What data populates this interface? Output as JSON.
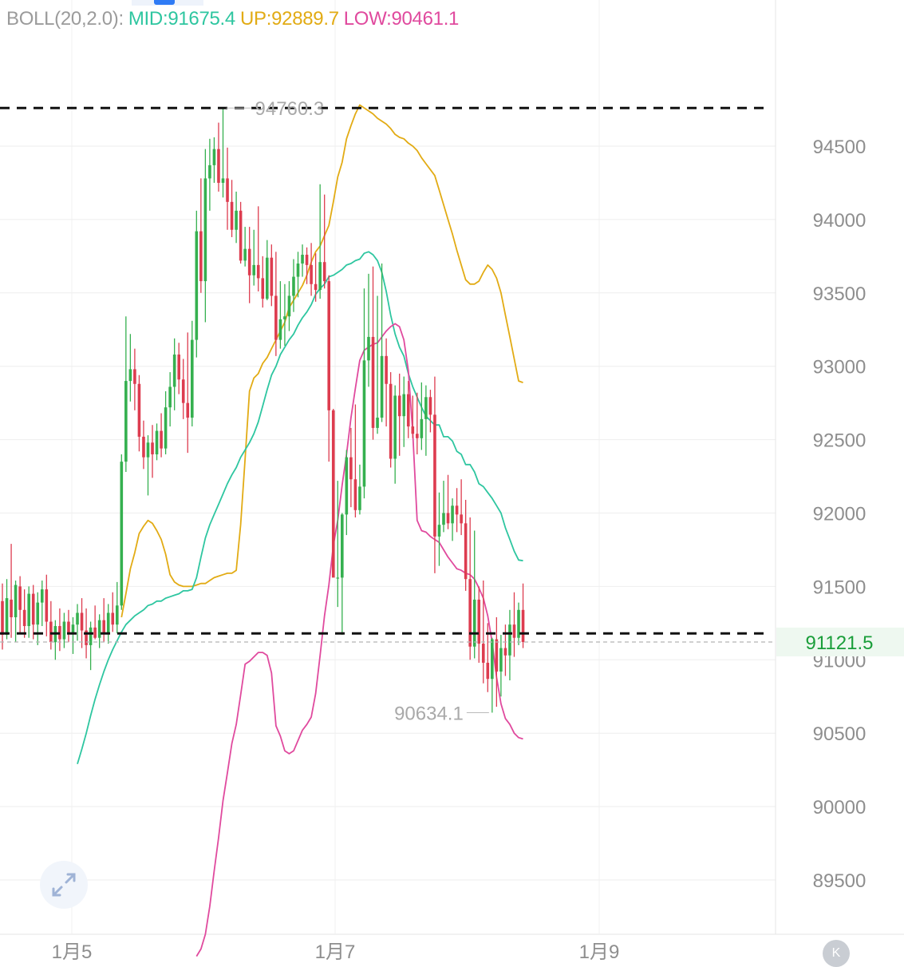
{
  "indicator": {
    "name": "BOLL(20,2.0):",
    "mid": "MID:91675.4",
    "up": "UP:92889.7",
    "low": "LOW:90461.1"
  },
  "colors": {
    "up_candle": "#35b04f",
    "down_candle": "#dd3c4f",
    "mid_line": "#2ec6a0",
    "upper_band": "#e2ab14",
    "lower_band": "#e04a9e",
    "price_label": "#1a9e3a",
    "axis_text": "#8e8e8e"
  },
  "chart_data": {
    "type": "candlestick",
    "y_ticks": [
      "94500",
      "94000",
      "93500",
      "93000",
      "92500",
      "92000",
      "91500",
      "91000",
      "90500",
      "90000",
      "89500"
    ],
    "x_ticks": [
      "1月5",
      "1月7",
      "1月9"
    ],
    "ylim": [
      89200,
      95500
    ],
    "high_marker": "94760.3",
    "low_marker": "90634.1",
    "current_price": "91121.5",
    "dashed_levels": [
      94760,
      91180
    ],
    "candles": [
      {
        "o": 91400,
        "h": 91520,
        "l": 91070,
        "c": 91170
      },
      {
        "o": 91170,
        "h": 91550,
        "l": 91140,
        "c": 91420
      },
      {
        "o": 91410,
        "h": 91790,
        "l": 91150,
        "c": 91290
      },
      {
        "o": 91290,
        "h": 91540,
        "l": 91120,
        "c": 91510
      },
      {
        "o": 91500,
        "h": 91570,
        "l": 91180,
        "c": 91340
      },
      {
        "o": 91340,
        "h": 91480,
        "l": 91150,
        "c": 91230
      },
      {
        "o": 91230,
        "h": 91500,
        "l": 91150,
        "c": 91450
      },
      {
        "o": 91450,
        "h": 91510,
        "l": 91140,
        "c": 91240
      },
      {
        "o": 91240,
        "h": 91460,
        "l": 91100,
        "c": 91390
      },
      {
        "o": 91390,
        "h": 91540,
        "l": 91230,
        "c": 91480
      },
      {
        "o": 91480,
        "h": 91580,
        "l": 91160,
        "c": 91260
      },
      {
        "o": 91260,
        "h": 91400,
        "l": 91070,
        "c": 91120
      },
      {
        "o": 91120,
        "h": 91270,
        "l": 91000,
        "c": 91230
      },
      {
        "o": 91230,
        "h": 91350,
        "l": 91060,
        "c": 91140
      },
      {
        "o": 91140,
        "h": 91320,
        "l": 91080,
        "c": 91260
      },
      {
        "o": 91260,
        "h": 91340,
        "l": 91120,
        "c": 91180
      },
      {
        "o": 91180,
        "h": 91290,
        "l": 91040,
        "c": 91240
      },
      {
        "o": 91240,
        "h": 91380,
        "l": 91130,
        "c": 91320
      },
      {
        "o": 91320,
        "h": 91420,
        "l": 91080,
        "c": 91200
      },
      {
        "o": 91200,
        "h": 91350,
        "l": 91010,
        "c": 91100
      },
      {
        "o": 91100,
        "h": 91260,
        "l": 90930,
        "c": 91220
      },
      {
        "o": 91220,
        "h": 91370,
        "l": 91140,
        "c": 91150
      },
      {
        "o": 91150,
        "h": 91310,
        "l": 91080,
        "c": 91270
      },
      {
        "o": 91270,
        "h": 91420,
        "l": 91120,
        "c": 91180
      },
      {
        "o": 91180,
        "h": 91380,
        "l": 91110,
        "c": 91320
      },
      {
        "o": 91320,
        "h": 91460,
        "l": 91190,
        "c": 91240
      },
      {
        "o": 91240,
        "h": 91530,
        "l": 91180,
        "c": 91370
      },
      {
        "o": 91370,
        "h": 92400,
        "l": 91340,
        "c": 92350
      },
      {
        "o": 92350,
        "h": 93340,
        "l": 92280,
        "c": 92900
      },
      {
        "o": 92900,
        "h": 93220,
        "l": 92760,
        "c": 92980
      },
      {
        "o": 92980,
        "h": 93120,
        "l": 92700,
        "c": 92880
      },
      {
        "o": 92880,
        "h": 92940,
        "l": 92420,
        "c": 92520
      },
      {
        "o": 92520,
        "h": 92630,
        "l": 92300,
        "c": 92380
      },
      {
        "o": 92380,
        "h": 92530,
        "l": 92120,
        "c": 92480
      },
      {
        "o": 92480,
        "h": 92600,
        "l": 92240,
        "c": 92400
      },
      {
        "o": 92400,
        "h": 92610,
        "l": 92360,
        "c": 92560
      },
      {
        "o": 92560,
        "h": 92680,
        "l": 92380,
        "c": 92440
      },
      {
        "o": 92440,
        "h": 92830,
        "l": 92400,
        "c": 92720
      },
      {
        "o": 92720,
        "h": 92960,
        "l": 92590,
        "c": 92860
      },
      {
        "o": 92860,
        "h": 93190,
        "l": 92700,
        "c": 93080
      },
      {
        "o": 93080,
        "h": 93160,
        "l": 92810,
        "c": 92910
      },
      {
        "o": 92910,
        "h": 93050,
        "l": 92640,
        "c": 92750
      },
      {
        "o": 92750,
        "h": 93230,
        "l": 92410,
        "c": 92650
      },
      {
        "o": 92650,
        "h": 93310,
        "l": 92590,
        "c": 93180
      },
      {
        "o": 93180,
        "h": 94060,
        "l": 93060,
        "c": 93920
      },
      {
        "o": 93920,
        "h": 94280,
        "l": 93500,
        "c": 93580
      },
      {
        "o": 93580,
        "h": 94480,
        "l": 93300,
        "c": 94280
      },
      {
        "o": 94280,
        "h": 94550,
        "l": 94060,
        "c": 94370
      },
      {
        "o": 94370,
        "h": 94560,
        "l": 94250,
        "c": 94480
      },
      {
        "o": 94480,
        "h": 94660,
        "l": 94190,
        "c": 94250
      },
      {
        "o": 94250,
        "h": 94760,
        "l": 94150,
        "c": 94280
      },
      {
        "o": 94280,
        "h": 94490,
        "l": 93930,
        "c": 94120
      },
      {
        "o": 94120,
        "h": 94270,
        "l": 93880,
        "c": 93930
      },
      {
        "o": 93930,
        "h": 94190,
        "l": 93840,
        "c": 94060
      },
      {
        "o": 94060,
        "h": 94120,
        "l": 93700,
        "c": 93720
      },
      {
        "o": 93720,
        "h": 93950,
        "l": 93680,
        "c": 93800
      },
      {
        "o": 93800,
        "h": 93950,
        "l": 93430,
        "c": 93620
      },
      {
        "o": 93620,
        "h": 93930,
        "l": 93550,
        "c": 93690
      },
      {
        "o": 93690,
        "h": 94090,
        "l": 93510,
        "c": 93600
      },
      {
        "o": 93600,
        "h": 93750,
        "l": 93400,
        "c": 93460
      },
      {
        "o": 93460,
        "h": 93860,
        "l": 93450,
        "c": 93740
      },
      {
        "o": 93740,
        "h": 93830,
        "l": 93410,
        "c": 93480
      },
      {
        "o": 93480,
        "h": 93780,
        "l": 93070,
        "c": 93180
      },
      {
        "o": 93180,
        "h": 93580,
        "l": 93120,
        "c": 93320
      },
      {
        "o": 93320,
        "h": 93560,
        "l": 93140,
        "c": 93340
      },
      {
        "o": 93340,
        "h": 93580,
        "l": 93240,
        "c": 93480
      },
      {
        "o": 93480,
        "h": 93730,
        "l": 93370,
        "c": 93610
      },
      {
        "o": 93610,
        "h": 93780,
        "l": 93470,
        "c": 93700
      },
      {
        "o": 93700,
        "h": 93830,
        "l": 93610,
        "c": 93760
      },
      {
        "o": 93760,
        "h": 93810,
        "l": 93560,
        "c": 93690
      },
      {
        "o": 93690,
        "h": 93840,
        "l": 93480,
        "c": 93560
      },
      {
        "o": 93560,
        "h": 93770,
        "l": 93440,
        "c": 93520
      },
      {
        "o": 93520,
        "h": 94240,
        "l": 93460,
        "c": 93710
      },
      {
        "o": 93710,
        "h": 94170,
        "l": 93530,
        "c": 93580
      },
      {
        "o": 93580,
        "h": 93620,
        "l": 92350,
        "c": 92700
      },
      {
        "o": 92700,
        "h": 92710,
        "l": 91590,
        "c": 91560
      },
      {
        "o": 91560,
        "h": 92220,
        "l": 91360,
        "c": 91560
      },
      {
        "o": 91560,
        "h": 92000,
        "l": 91170,
        "c": 91990
      },
      {
        "o": 91990,
        "h": 92430,
        "l": 91850,
        "c": 92380
      },
      {
        "o": 92380,
        "h": 92580,
        "l": 92040,
        "c": 92230
      },
      {
        "o": 92230,
        "h": 92740,
        "l": 91970,
        "c": 92020
      },
      {
        "o": 92020,
        "h": 92330,
        "l": 91990,
        "c": 92180
      },
      {
        "o": 92180,
        "h": 93530,
        "l": 92100,
        "c": 93040
      },
      {
        "o": 93040,
        "h": 93630,
        "l": 92860,
        "c": 93200
      },
      {
        "o": 93200,
        "h": 93680,
        "l": 92500,
        "c": 92580
      },
      {
        "o": 92580,
        "h": 93480,
        "l": 92540,
        "c": 92650
      },
      {
        "o": 92650,
        "h": 93700,
        "l": 92620,
        "c": 93070
      },
      {
        "o": 93070,
        "h": 93190,
        "l": 92590,
        "c": 92880
      },
      {
        "o": 92880,
        "h": 92960,
        "l": 92310,
        "c": 92370
      },
      {
        "o": 92370,
        "h": 92870,
        "l": 92200,
        "c": 92800
      },
      {
        "o": 92800,
        "h": 92950,
        "l": 92390,
        "c": 92660
      },
      {
        "o": 92660,
        "h": 92930,
        "l": 92450,
        "c": 92810
      },
      {
        "o": 92810,
        "h": 92900,
        "l": 92510,
        "c": 92590
      },
      {
        "o": 92590,
        "h": 92800,
        "l": 92510,
        "c": 92540
      },
      {
        "o": 92540,
        "h": 92820,
        "l": 92400,
        "c": 92510
      },
      {
        "o": 92510,
        "h": 92890,
        "l": 92430,
        "c": 92640
      },
      {
        "o": 92640,
        "h": 92870,
        "l": 92390,
        "c": 92790
      },
      {
        "o": 92790,
        "h": 92840,
        "l": 92550,
        "c": 92670
      },
      {
        "o": 92670,
        "h": 92930,
        "l": 91590,
        "c": 91840
      },
      {
        "o": 91840,
        "h": 92140,
        "l": 91640,
        "c": 91920
      },
      {
        "o": 91920,
        "h": 92220,
        "l": 91870,
        "c": 92000
      },
      {
        "o": 92000,
        "h": 92260,
        "l": 91890,
        "c": 91930
      },
      {
        "o": 91930,
        "h": 92100,
        "l": 91810,
        "c": 92050
      },
      {
        "o": 92050,
        "h": 92170,
        "l": 91870,
        "c": 91990
      },
      {
        "o": 91990,
        "h": 92230,
        "l": 91850,
        "c": 91930
      },
      {
        "o": 91930,
        "h": 92090,
        "l": 91470,
        "c": 91550
      },
      {
        "o": 91550,
        "h": 91970,
        "l": 91000,
        "c": 91090
      },
      {
        "o": 91090,
        "h": 91880,
        "l": 91010,
        "c": 91410
      },
      {
        "o": 91410,
        "h": 91500,
        "l": 90980,
        "c": 91110
      },
      {
        "o": 91110,
        "h": 91540,
        "l": 90840,
        "c": 90980
      },
      {
        "o": 90980,
        "h": 91250,
        "l": 90780,
        "c": 90870
      },
      {
        "o": 90870,
        "h": 91150,
        "l": 90640,
        "c": 91140
      },
      {
        "o": 91140,
        "h": 91290,
        "l": 90680,
        "c": 90920
      },
      {
        "o": 90920,
        "h": 91170,
        "l": 90750,
        "c": 91080
      },
      {
        "o": 91080,
        "h": 91240,
        "l": 90890,
        "c": 91030
      },
      {
        "o": 91030,
        "h": 91340,
        "l": 90860,
        "c": 91240
      },
      {
        "o": 91240,
        "h": 91460,
        "l": 91020,
        "c": 91150
      },
      {
        "o": 91150,
        "h": 91390,
        "l": 91100,
        "c": 91340
      },
      {
        "o": 91340,
        "h": 91520,
        "l": 91080,
        "c": 91121.5
      }
    ],
    "mid_band": [
      90290,
      90390,
      90500,
      90620,
      90730,
      90830,
      90920,
      91000,
      91070,
      91130,
      91190,
      91240,
      91270,
      91300,
      91320,
      91340,
      91370,
      91380,
      91400,
      91400,
      91420,
      91430,
      91440,
      91450,
      91470,
      91470,
      91480,
      91560,
      91700,
      91830,
      91920,
      91990,
      92060,
      92130,
      92200,
      92260,
      92310,
      92380,
      92430,
      92480,
      92540,
      92620,
      92730,
      92840,
      92940,
      93000,
      93080,
      93130,
      93180,
      93220,
      93280,
      93330,
      93370,
      93420,
      93490,
      93530,
      93560,
      93610,
      93620,
      93640,
      93660,
      93690,
      93700,
      93720,
      93730,
      93770,
      93780,
      93760,
      93720,
      93640,
      93510,
      93350,
      93220,
      93130,
      93070,
      92950,
      92860,
      92790,
      92720,
      92660,
      92630,
      92600,
      92600,
      92520,
      92520,
      92490,
      92420,
      92400,
      92330,
      92330,
      92280,
      92200,
      92180,
      92140,
      92100,
      92050,
      92000,
      91900,
      91820,
      91740,
      91680,
      91675
    ],
    "upper_band": [
      91290,
      91450,
      91620,
      91730,
      91860,
      91910,
      91950,
      91930,
      91880,
      91820,
      91720,
      91580,
      91530,
      91510,
      91500,
      91500,
      91500,
      91510,
      91520,
      91520,
      91540,
      91560,
      91570,
      91580,
      91590,
      91590,
      91610,
      91920,
      92370,
      92830,
      92920,
      92950,
      93020,
      93060,
      93120,
      93180,
      93240,
      93300,
      93400,
      93450,
      93500,
      93550,
      93620,
      93710,
      93780,
      93820,
      93890,
      93960,
      94120,
      94290,
      94390,
      94550,
      94640,
      94720,
      94780,
      94760,
      94740,
      94720,
      94690,
      94670,
      94650,
      94620,
      94580,
      94560,
      94550,
      94520,
      94500,
      94470,
      94420,
      94380,
      94340,
      94300,
      94200,
      94100,
      94000,
      93900,
      93790,
      93690,
      93590,
      93560,
      93560,
      93580,
      93640,
      93690,
      93660,
      93600,
      93500,
      93350,
      93200,
      93050,
      92900,
      92889
    ],
    "lower_band": [
      88980,
      89030,
      89130,
      89320,
      89560,
      89790,
      90040,
      90230,
      90430,
      90560,
      90760,
      90970,
      90990,
      91020,
      91050,
      91050,
      91030,
      90910,
      90550,
      90480,
      90380,
      90360,
      90380,
      90450,
      90520,
      90560,
      90610,
      90770,
      91030,
      91300,
      91510,
      91780,
      91950,
      92190,
      92400,
      92650,
      92850,
      93040,
      93110,
      93130,
      93150,
      93160,
      93200,
      93240,
      93270,
      93290,
      93270,
      93180,
      92970,
      92550,
      91950,
      91880,
      91870,
      91840,
      91820,
      91800,
      91750,
      91700,
      91660,
      91620,
      91610,
      91590,
      91580,
      91550,
      91490,
      91420,
      91300,
      91120,
      90880,
      90700,
      90600,
      90560,
      90500,
      90470,
      90461
    ]
  }
}
